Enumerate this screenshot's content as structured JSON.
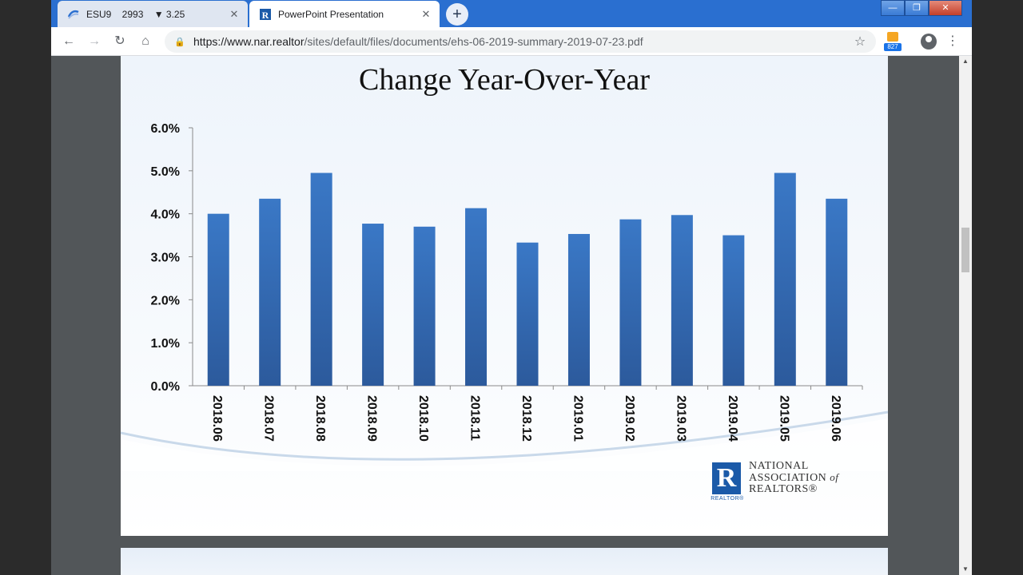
{
  "browser": {
    "tabs": [
      {
        "title": "ESU9    2993    ▼ 3.25",
        "close": "✕",
        "active": false,
        "icon": "stock-ticker-icon"
      },
      {
        "title": "PowerPoint Presentation",
        "close": "✕",
        "active": true,
        "icon": "realtor-favicon-icon"
      }
    ],
    "new_tab": "+",
    "window_controls": {
      "minimize": "—",
      "restore": "❐",
      "close": "✕"
    },
    "nav": {
      "back": "←",
      "forward": "→",
      "reload": "↻",
      "home": "⌂"
    },
    "url_host": "https://www.nar.realtor",
    "url_path": "/sites/default/files/documents/ehs-06-2019-summary-2019-07-23.pdf",
    "lock": "🔒",
    "star": "☆",
    "extension_badge": "827",
    "menu": "⋮"
  },
  "slide": {
    "title": "Change Year-Over-Year",
    "logo_letter": "R",
    "logo_small": "REALTOR®",
    "logo_line1": "NATIONAL",
    "logo_line2a": "ASSOCIATION",
    "logo_line2b": "of",
    "logo_line3": "REALTORS®"
  },
  "chart_data": {
    "type": "bar",
    "title": "Change Year-Over-Year",
    "categories": [
      "2018.06",
      "2018.07",
      "2018.08",
      "2018.09",
      "2018.10",
      "2018.11",
      "2018.12",
      "2019.01",
      "2019.02",
      "2019.03",
      "2019.04",
      "2019.05",
      "2019.06"
    ],
    "values": [
      4.0,
      4.35,
      4.95,
      3.77,
      3.7,
      4.13,
      3.33,
      3.53,
      3.87,
      3.97,
      3.5,
      4.95,
      4.35
    ],
    "yticks": [
      "0.0%",
      "1.0%",
      "2.0%",
      "3.0%",
      "4.0%",
      "5.0%",
      "6.0%"
    ],
    "ylim": [
      0,
      6
    ],
    "bar_color": "#3a78c6",
    "grid": false
  }
}
